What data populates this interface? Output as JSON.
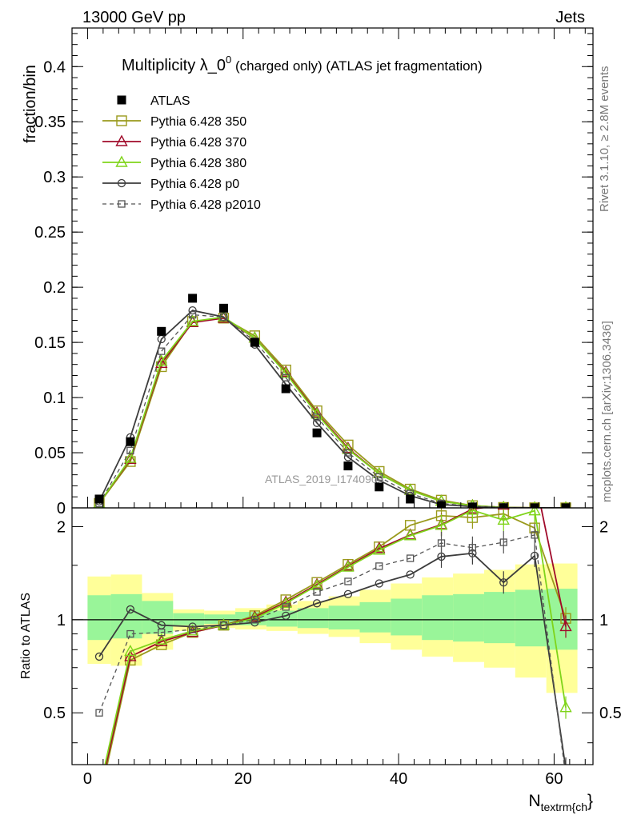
{
  "header": {
    "left": "13000 GeV pp",
    "right": "Jets"
  },
  "side_labels": {
    "top": "Rivet 3.1.10, ≥ 2.8M events",
    "bottom": "mcplots.cern.ch [arXiv:1306.3436]"
  },
  "watermark": "ATLAS_2019_I1740909",
  "chart_data": [
    {
      "type": "line",
      "title_main": "Multiplicity λ_0",
      "title_sup": "0",
      "title_rest": " (charged only) (ATLAS jet fragmentation)",
      "ylabel": "fraction/bin",
      "xlim": [
        -2,
        65
      ],
      "ylim": [
        0,
        0.435
      ],
      "yticks": [
        "0",
        "0.05",
        "0.1",
        "0.15",
        "0.2",
        "0.25",
        "0.3",
        "0.35",
        "0.4"
      ],
      "legend_position": "top-left",
      "x": [
        1.5,
        5.5,
        9.5,
        13.5,
        17.5,
        21.5,
        25.5,
        29.5,
        33.5,
        37.5,
        41.5,
        45.5,
        49.5,
        53.5,
        57.5,
        61.5
      ],
      "data": {
        "name": "ATLAS",
        "values": [
          0.008,
          0.06,
          0.16,
          0.19,
          0.181,
          0.15,
          0.108,
          0.068,
          0.038,
          0.019,
          0.008,
          0.002,
          0.0008,
          0.0002,
          0.0001,
          0.0001
        ]
      },
      "series": [
        {
          "name": "Pythia 6.428 350",
          "color": "#9a9a1c",
          "marker": "square",
          "dash": false,
          "values": [
            0.004,
            0.042,
            0.128,
            0.169,
            0.172,
            0.156,
            0.125,
            0.088,
            0.057,
            0.033,
            0.017,
            0.007,
            0.002,
            0.0004,
            0.0001,
            3e-05
          ]
        },
        {
          "name": "Pythia 6.428 370",
          "color": "#a00a2a",
          "marker": "triangle",
          "dash": false,
          "values": [
            0.004,
            0.044,
            0.131,
            0.168,
            0.172,
            0.154,
            0.123,
            0.086,
            0.054,
            0.031,
            0.016,
            0.006,
            0.002,
            0.0004,
            0.0001,
            3e-05
          ]
        },
        {
          "name": "Pythia 6.428 380",
          "color": "#7fd41a",
          "marker": "triangle",
          "dash": false,
          "values": [
            0.004,
            0.045,
            0.133,
            0.169,
            0.173,
            0.154,
            0.122,
            0.085,
            0.053,
            0.031,
            0.016,
            0.006,
            0.002,
            0.0004,
            0.0001,
            3e-05
          ]
        },
        {
          "name": "Pythia 6.428 p0",
          "color": "#3c3c3c",
          "marker": "circle",
          "dash": false,
          "values": [
            0.006,
            0.064,
            0.153,
            0.179,
            0.173,
            0.148,
            0.112,
            0.077,
            0.046,
            0.025,
            0.011,
            0.003,
            0.0012,
            0.0002,
            0.0001,
            3e-05
          ]
        },
        {
          "name": "Pythia 6.428 p2010",
          "color": "#555555",
          "marker": "square-small",
          "dash": true,
          "values": [
            0.004,
            0.052,
            0.142,
            0.175,
            0.173,
            0.151,
            0.118,
            0.082,
            0.05,
            0.028,
            0.013,
            0.004,
            0.0014,
            0.0003,
            0.0001,
            3e-05
          ]
        }
      ]
    },
    {
      "type": "line",
      "ylabel": "Ratio to ATLAS",
      "xlabel_main": "N",
      "xlabel_sub": "textrm{ch",
      "xlabel_tail": "}",
      "xlim": [
        -2,
        65
      ],
      "ylim": [
        0.34,
        2.3
      ],
      "xticks": [
        "0",
        "20",
        "40",
        "60"
      ],
      "yticks": [
        "0.5",
        "1",
        "2"
      ],
      "bins": [
        [
          0,
          3
        ],
        [
          3,
          7
        ],
        [
          7,
          11
        ],
        [
          11,
          15
        ],
        [
          15,
          19
        ],
        [
          19,
          23
        ],
        [
          23,
          27
        ],
        [
          27,
          31
        ],
        [
          31,
          35
        ],
        [
          35,
          39
        ],
        [
          39,
          43
        ],
        [
          43,
          47
        ],
        [
          47,
          51
        ],
        [
          51,
          55
        ],
        [
          55,
          59
        ],
        [
          59,
          63
        ]
      ],
      "band_green": [
        [
          0.86,
          1.2
        ],
        [
          0.87,
          1.21
        ],
        [
          0.9,
          1.15
        ],
        [
          0.96,
          1.05
        ],
        [
          0.97,
          1.04
        ],
        [
          0.96,
          1.06
        ],
        [
          0.95,
          1.07
        ],
        [
          0.94,
          1.09
        ],
        [
          0.93,
          1.11
        ],
        [
          0.91,
          1.14
        ],
        [
          0.89,
          1.17
        ],
        [
          0.86,
          1.2
        ],
        [
          0.85,
          1.21
        ],
        [
          0.84,
          1.23
        ],
        [
          0.82,
          1.25
        ],
        [
          0.8,
          1.26
        ]
      ],
      "band_yellow": [
        [
          0.72,
          1.38
        ],
        [
          0.71,
          1.4
        ],
        [
          0.8,
          1.22
        ],
        [
          0.92,
          1.08
        ],
        [
          0.94,
          1.07
        ],
        [
          0.93,
          1.09
        ],
        [
          0.92,
          1.12
        ],
        [
          0.9,
          1.15
        ],
        [
          0.88,
          1.19
        ],
        [
          0.84,
          1.25
        ],
        [
          0.8,
          1.31
        ],
        [
          0.76,
          1.37
        ],
        [
          0.73,
          1.41
        ],
        [
          0.7,
          1.45
        ],
        [
          0.65,
          1.51
        ],
        [
          0.58,
          1.52
        ]
      ],
      "series": [
        {
          "name": "Pythia 6.428 350",
          "values": [
            0.26,
            0.74,
            0.83,
            0.91,
            0.96,
            1.03,
            1.16,
            1.32,
            1.51,
            1.72,
            2.02,
            2.17,
            2.14,
            2.2,
            1.98,
            1.01
          ]
        },
        {
          "name": "Pythia 6.428 370",
          "values": [
            0.27,
            0.76,
            0.85,
            0.91,
            0.96,
            1.02,
            1.14,
            1.3,
            1.49,
            1.7,
            1.88,
            2.03,
            2.28,
            2.35,
            2.9,
            0.95
          ]
        },
        {
          "name": "Pythia 6.428 380",
          "values": [
            0.28,
            0.79,
            0.86,
            0.92,
            0.96,
            1.01,
            1.13,
            1.29,
            1.48,
            1.68,
            1.87,
            2.02,
            2.26,
            2.1,
            2.25,
            0.52
          ]
        },
        {
          "name": "Pythia 6.428 p0",
          "values": [
            0.76,
            1.08,
            0.96,
            0.95,
            0.96,
            0.98,
            1.03,
            1.13,
            1.21,
            1.31,
            1.4,
            1.6,
            1.64,
            1.32,
            1.61,
            0.33
          ]
        },
        {
          "name": "Pythia 6.428 p2010",
          "values": [
            0.5,
            0.9,
            0.91,
            0.93,
            0.96,
            1.0,
            1.1,
            1.23,
            1.33,
            1.49,
            1.58,
            1.77,
            1.71,
            1.78,
            1.88,
            0.31
          ]
        }
      ]
    }
  ]
}
